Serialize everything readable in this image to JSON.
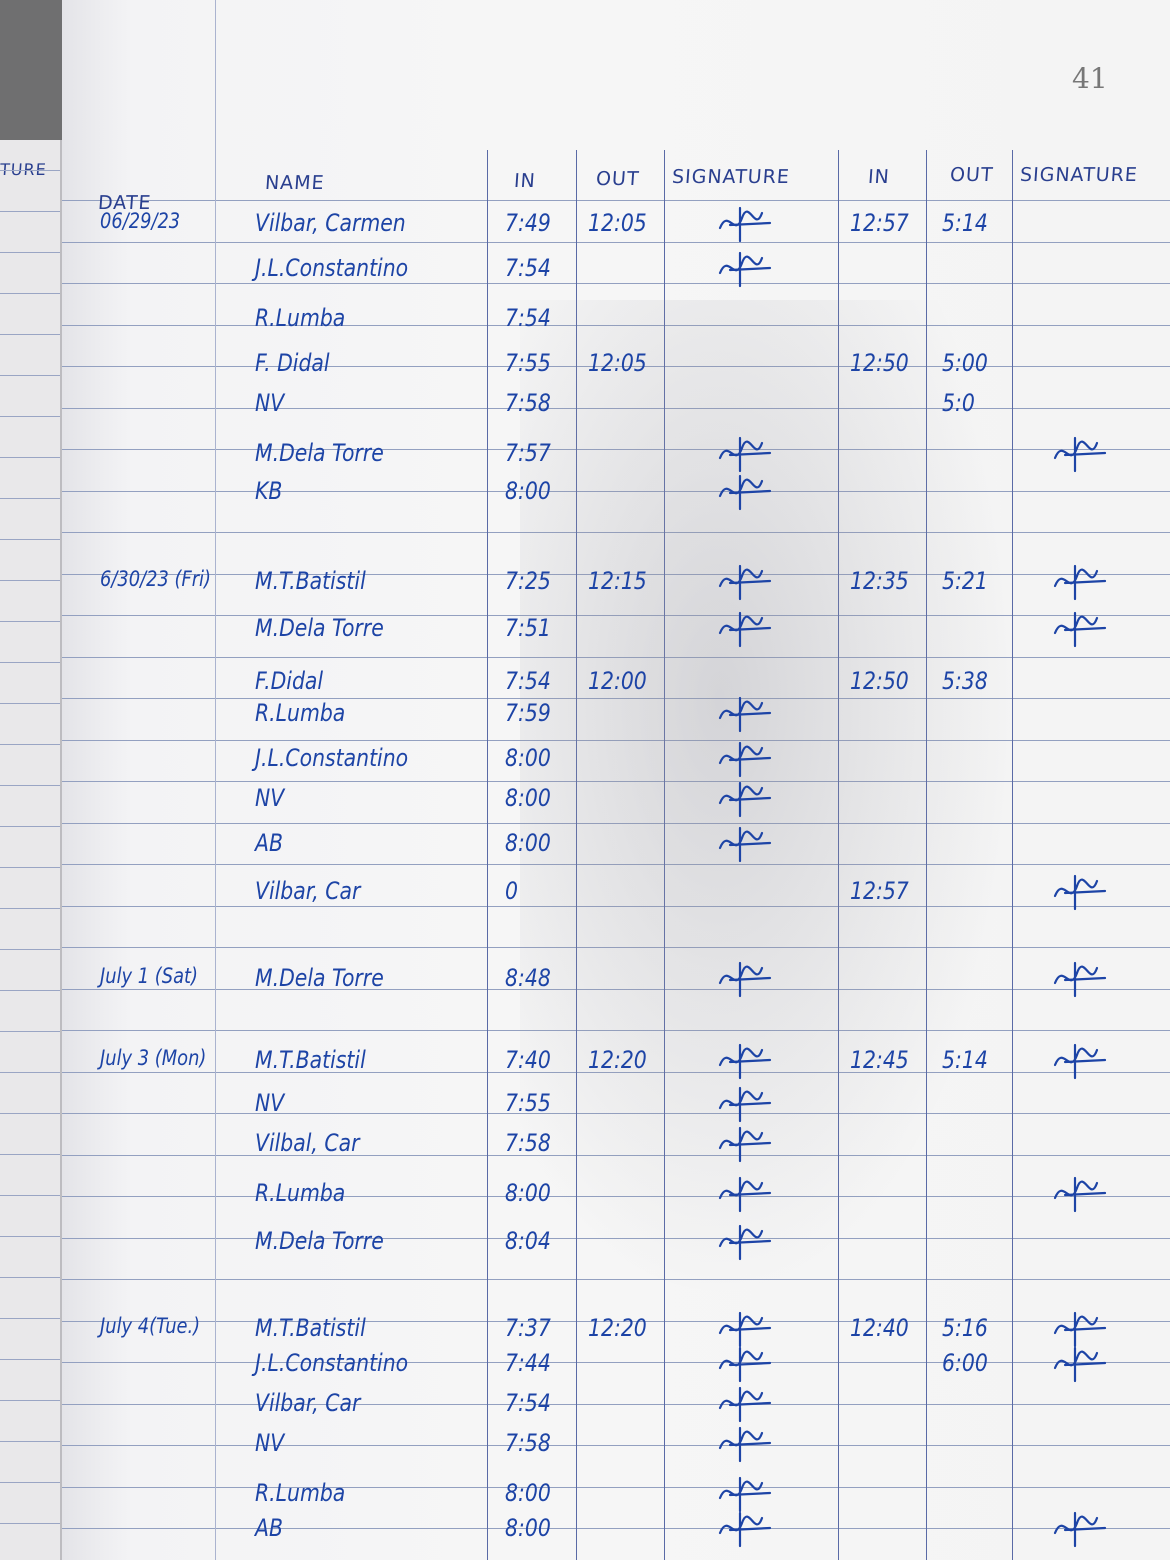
{
  "page_number": "41",
  "left_page_fragment": "TURE",
  "headers": {
    "date": "DATE",
    "name": "NAME",
    "in_am": "IN",
    "out_am": "OUT",
    "signature_am": "SIGNATURE",
    "in_pm": "IN",
    "out_pm": "OUT",
    "signature_pm": "SIGNATURE"
  },
  "ink_color": "#1d44a6",
  "entries": [
    {
      "date": "06/29/23",
      "name": "Vilbar, Carmen",
      "in_am": "7:49",
      "out_am": "12:05",
      "sig_am": true,
      "in_pm": "12:57",
      "out_pm": "5:14",
      "sig_pm": false
    },
    {
      "date": "",
      "name": "J.L.Constantino",
      "in_am": "7:54",
      "out_am": "",
      "sig_am": true,
      "in_pm": "",
      "out_pm": "",
      "sig_pm": false
    },
    {
      "date": "",
      "name": "R.Lumba",
      "in_am": "7:54",
      "out_am": "",
      "sig_am": false,
      "in_pm": "",
      "out_pm": "",
      "sig_pm": false
    },
    {
      "date": "",
      "name": "F. Didal",
      "in_am": "7:55",
      "out_am": "12:05",
      "sig_am": false,
      "in_pm": "12:50",
      "out_pm": "5:00",
      "sig_pm": false
    },
    {
      "date": "",
      "name": "NV",
      "in_am": "7:58",
      "out_am": "",
      "sig_am": false,
      "in_pm": "",
      "out_pm": "5:0",
      "sig_pm": false
    },
    {
      "date": "",
      "name": "M.Dela Torre",
      "in_am": "7:57",
      "out_am": "",
      "sig_am": true,
      "in_pm": "",
      "out_pm": "",
      "sig_pm": true
    },
    {
      "date": "",
      "name": "KB",
      "in_am": "8:00",
      "out_am": "",
      "sig_am": true,
      "in_pm": "",
      "out_pm": "",
      "sig_pm": false
    },
    {
      "date": "6/30/23 (Fri)",
      "name": "M.T.Batistil",
      "in_am": "7:25",
      "out_am": "12:15",
      "sig_am": true,
      "in_pm": "12:35",
      "out_pm": "5:21",
      "sig_pm": true
    },
    {
      "date": "",
      "name": "M.Dela Torre",
      "in_am": "7:51",
      "out_am": "",
      "sig_am": true,
      "in_pm": "",
      "out_pm": "",
      "sig_pm": true
    },
    {
      "date": "",
      "name": "F.Didal",
      "in_am": "7:54",
      "out_am": "12:00",
      "sig_am": false,
      "in_pm": "12:50",
      "out_pm": "5:38",
      "sig_pm": false
    },
    {
      "date": "",
      "name": "R.Lumba",
      "in_am": "7:59",
      "out_am": "",
      "sig_am": true,
      "in_pm": "",
      "out_pm": "",
      "sig_pm": false
    },
    {
      "date": "",
      "name": "J.L.Constantino",
      "in_am": "8:00",
      "out_am": "",
      "sig_am": true,
      "in_pm": "",
      "out_pm": "",
      "sig_pm": false
    },
    {
      "date": "",
      "name": "NV",
      "in_am": "8:00",
      "out_am": "",
      "sig_am": true,
      "in_pm": "",
      "out_pm": "",
      "sig_pm": false
    },
    {
      "date": "",
      "name": "AB",
      "in_am": "8:00",
      "out_am": "",
      "sig_am": true,
      "in_pm": "",
      "out_pm": "",
      "sig_pm": false
    },
    {
      "date": "",
      "name": "Vilbar, Car",
      "in_am": "0",
      "out_am": "",
      "sig_am": false,
      "in_pm": "12:57",
      "out_pm": "",
      "sig_pm": true
    },
    {
      "date": "July 1 (Sat)",
      "name": "M.Dela Torre",
      "in_am": "8:48",
      "out_am": "",
      "sig_am": true,
      "in_pm": "",
      "out_pm": "",
      "sig_pm": true
    },
    {
      "date": "July 3 (Mon)",
      "name": "M.T.Batistil",
      "in_am": "7:40",
      "out_am": "12:20",
      "sig_am": true,
      "in_pm": "12:45",
      "out_pm": "5:14",
      "sig_pm": true
    },
    {
      "date": "",
      "name": "NV",
      "in_am": "7:55",
      "out_am": "",
      "sig_am": true,
      "in_pm": "",
      "out_pm": "",
      "sig_pm": false
    },
    {
      "date": "",
      "name": "Vilbal, Car",
      "in_am": "7:58",
      "out_am": "",
      "sig_am": true,
      "in_pm": "",
      "out_pm": "",
      "sig_pm": false
    },
    {
      "date": "",
      "name": "R.Lumba",
      "in_am": "8:00",
      "out_am": "",
      "sig_am": true,
      "in_pm": "",
      "out_pm": "",
      "sig_pm": true
    },
    {
      "date": "",
      "name": "M.Dela Torre",
      "in_am": "8:04",
      "out_am": "",
      "sig_am": true,
      "in_pm": "",
      "out_pm": "",
      "sig_pm": false
    },
    {
      "date": "July 4(Tue.)",
      "name": "M.T.Batistil",
      "in_am": "7:37",
      "out_am": "12:20",
      "sig_am": true,
      "in_pm": "12:40",
      "out_pm": "5:16",
      "sig_pm": true
    },
    {
      "date": "",
      "name": "J.L.Constantino",
      "in_am": "7:44",
      "out_am": "",
      "sig_am": true,
      "in_pm": "",
      "out_pm": "6:00",
      "sig_pm": true
    },
    {
      "date": "",
      "name": "Vilbar, Car",
      "in_am": "7:54",
      "out_am": "",
      "sig_am": true,
      "in_pm": "",
      "out_pm": "",
      "sig_pm": false
    },
    {
      "date": "",
      "name": "NV",
      "in_am": "7:58",
      "out_am": "",
      "sig_am": true,
      "in_pm": "",
      "out_pm": "",
      "sig_pm": false
    },
    {
      "date": "",
      "name": "R.Lumba",
      "in_am": "8:00",
      "out_am": "",
      "sig_am": true,
      "in_pm": "",
      "out_pm": "",
      "sig_pm": false
    },
    {
      "date": "",
      "name": "AB",
      "in_am": "8:00",
      "out_am": "",
      "sig_am": true,
      "in_pm": "",
      "out_pm": "",
      "sig_pm": true
    }
  ]
}
